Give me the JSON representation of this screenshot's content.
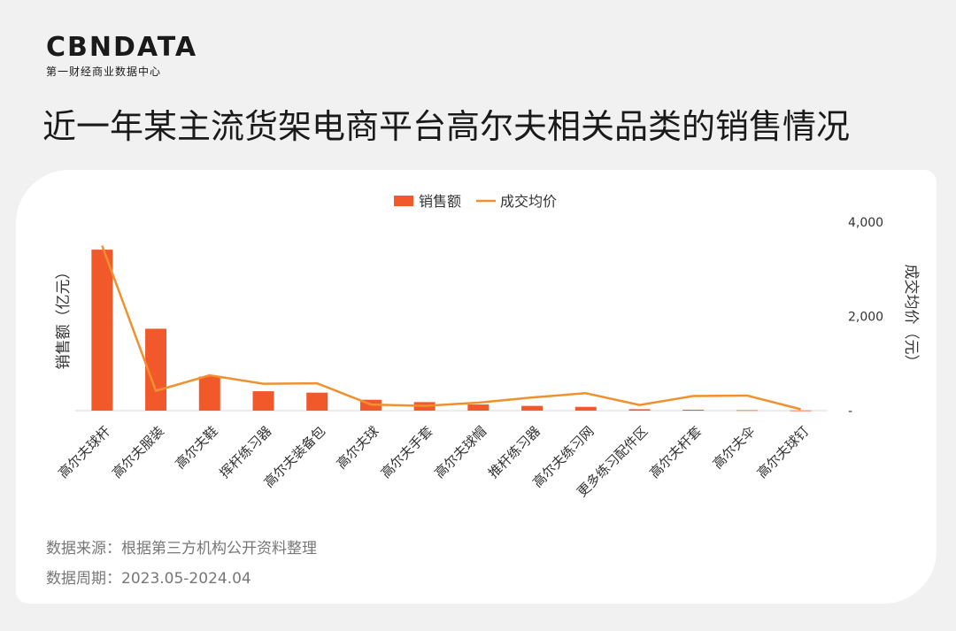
{
  "brand": {
    "logo": "CBNDATA",
    "tagline": "第一财经商业数据中心"
  },
  "page_title": "近一年某主流货架电商平台高尔夫相关品类的销售情况",
  "colors": {
    "bar": "#f2592a",
    "line": "#f0902e",
    "axis": "#999999",
    "text": "#333333"
  },
  "chart_data": {
    "type": "bar+line",
    "categories": [
      "高尔夫球杆",
      "高尔夫服装",
      "高尔夫鞋",
      "挥杆练习器",
      "高尔夫装备包",
      "高尔夫球",
      "高尔夫手套",
      "高尔夫球帽",
      "推杆练习器",
      "高尔夫练习网",
      "更多练习配件区",
      "高尔夫杆套",
      "高尔夫伞",
      "高尔夫球钉"
    ],
    "series": [
      {
        "name": "销售额",
        "type": "bar",
        "axis": "left",
        "values": [
          34,
          17.3,
          7.2,
          4.1,
          3.8,
          2.3,
          1.8,
          1.3,
          1.0,
          0.8,
          0.3,
          0.2,
          0.1,
          0.05
        ]
      },
      {
        "name": "成交均价",
        "type": "line",
        "axis": "right",
        "values": [
          3500,
          420,
          750,
          570,
          580,
          130,
          100,
          170,
          280,
          370,
          120,
          310,
          320,
          30
        ]
      }
    ],
    "y_left_label": "销售额（亿元）",
    "y_right_label": "成交均价（元）",
    "y_right_ticks": [
      "-",
      "2,000",
      "4,000"
    ],
    "y_right_range": [
      0,
      4000
    ],
    "legend_position": "top-center"
  },
  "footnotes": {
    "source": "数据来源：根据第三方机构公开资料整理",
    "period": "数据周期：2023.05-2024.04"
  }
}
